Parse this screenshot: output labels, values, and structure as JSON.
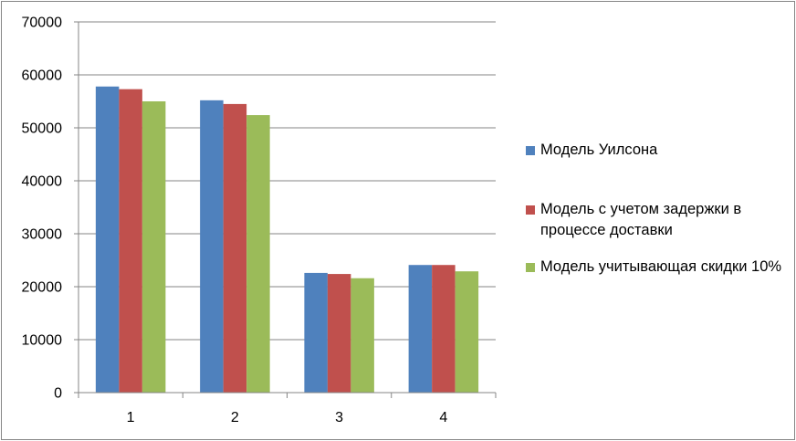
{
  "chart_data": {
    "type": "bar",
    "title": "",
    "xlabel": "",
    "ylabel": "",
    "categories": [
      "1",
      "2",
      "3",
      "4"
    ],
    "ylim": [
      0,
      70000
    ],
    "yticks": [
      0,
      10000,
      20000,
      30000,
      40000,
      50000,
      60000,
      70000
    ],
    "grid": true,
    "legend_position": "right",
    "series": [
      {
        "name": "Модель Уилсона",
        "color": "#4F81BD",
        "values": [
          57800,
          55200,
          22600,
          24100
        ]
      },
      {
        "name": "Модель с учетом задержки в процессе доставки",
        "color": "#C0504D",
        "values": [
          57300,
          54500,
          22400,
          24100
        ]
      },
      {
        "name": "Модель учитывающая скидки 10%",
        "color": "#9BBB59",
        "values": [
          55000,
          52400,
          21600,
          22900
        ]
      }
    ]
  }
}
